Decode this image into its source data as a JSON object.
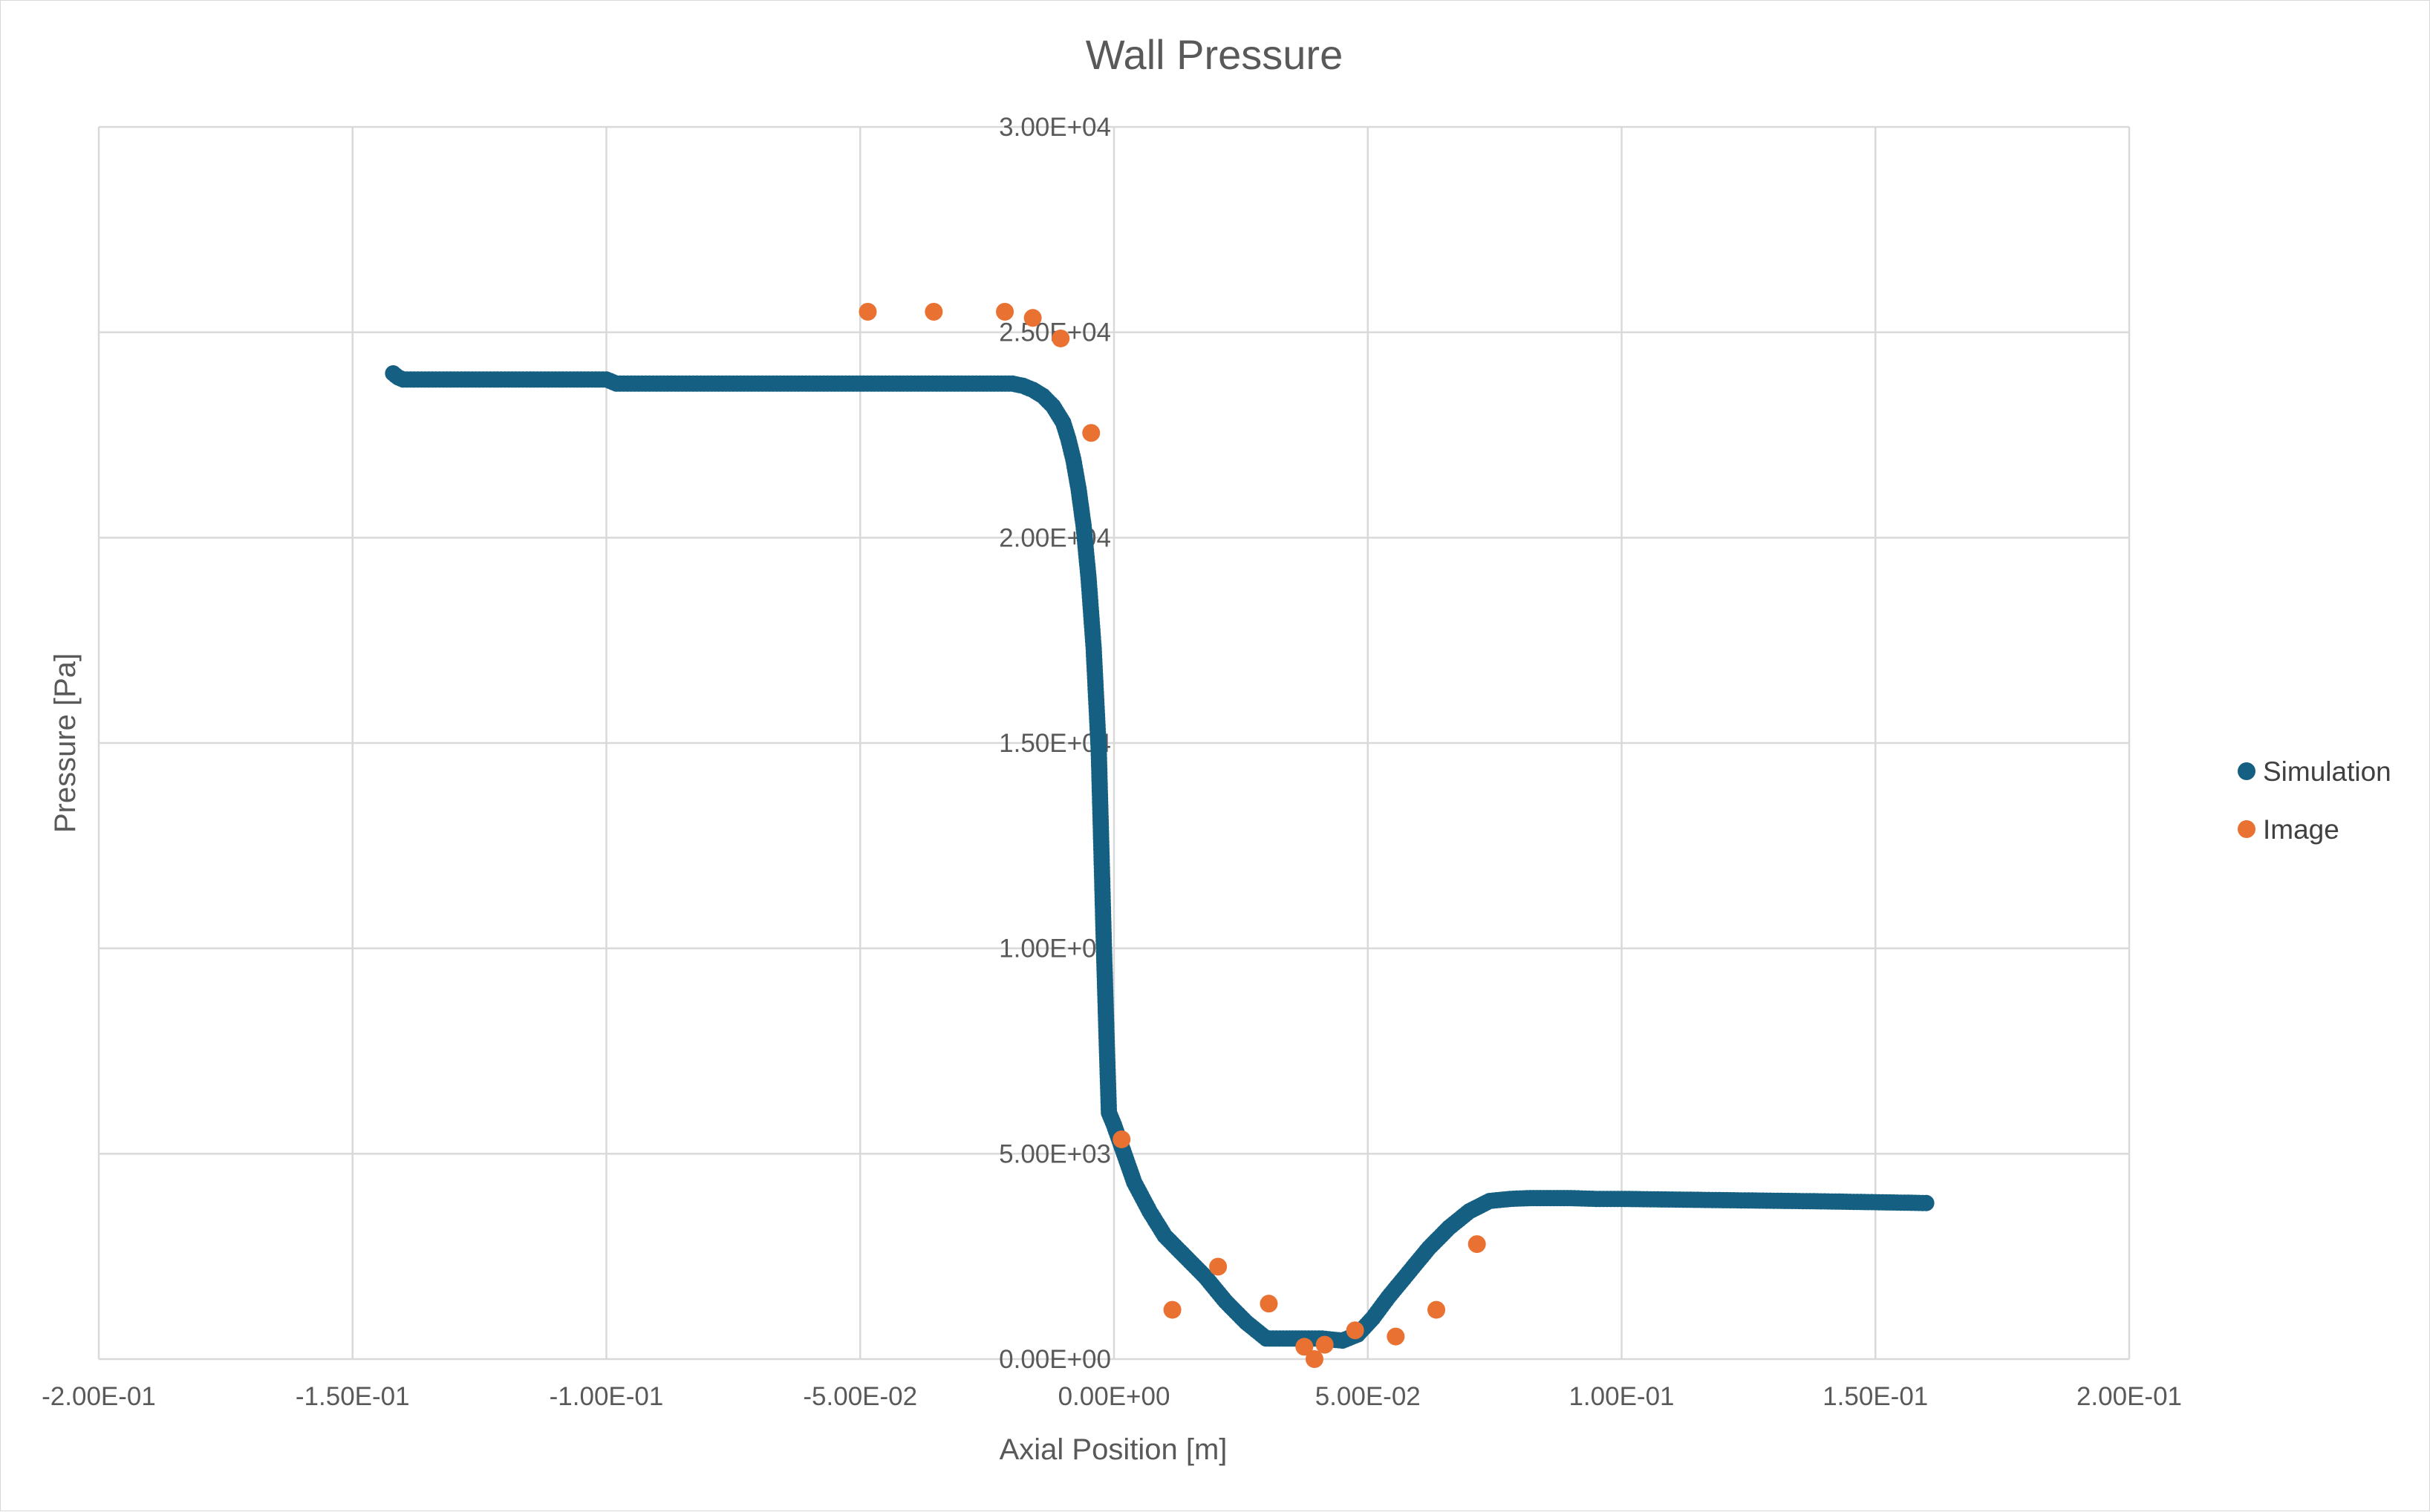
{
  "chart_data": {
    "type": "scatter",
    "title": "Wall Pressure",
    "xlabel": "Axial Position [m]",
    "ylabel": "Pressure [Pa]",
    "xlim": [
      -0.2,
      0.2
    ],
    "ylim": [
      0,
      30000
    ],
    "x_ticks": [
      -0.2,
      -0.15,
      -0.1,
      -0.05,
      0,
      0.05,
      0.1,
      0.15,
      0.2
    ],
    "x_tick_labels": [
      "-2.00E-01",
      "-1.50E-01",
      "-1.00E-01",
      "-5.00E-02",
      "0.00E+00",
      "5.00E-02",
      "1.00E-01",
      "1.50E-01",
      "2.00E-01"
    ],
    "y_ticks": [
      0,
      5000,
      10000,
      15000,
      20000,
      25000,
      30000
    ],
    "y_tick_labels": [
      "0.00E+00",
      "5.00E+03",
      "1.00E+04",
      "1.50E+04",
      "2.00E+04",
      "2.50E+04",
      "3.00E+04"
    ],
    "grid": true,
    "legend_position": "right",
    "colors": {
      "Simulation": "#156082",
      "Image": "#e97132"
    },
    "series": [
      {
        "name": "Simulation",
        "type": "curve-samples",
        "x": [
          -0.142,
          -0.141,
          -0.14,
          -0.13,
          -0.12,
          -0.11,
          -0.1,
          -0.098,
          -0.08,
          -0.06,
          -0.04,
          -0.03,
          -0.02,
          -0.018,
          -0.016,
          -0.014,
          -0.012,
          -0.01,
          -0.009,
          -0.008,
          -0.007,
          -0.006,
          -0.005,
          -0.004,
          -0.003,
          -0.0025,
          -0.002,
          -0.0015,
          -0.001,
          0.0,
          0.002,
          0.004,
          0.007,
          0.01,
          0.014,
          0.018,
          0.022,
          0.026,
          0.03,
          0.034,
          0.037,
          0.039,
          0.041,
          0.045,
          0.048,
          0.051,
          0.054,
          0.058,
          0.062,
          0.066,
          0.07,
          0.074,
          0.078,
          0.082,
          0.086,
          0.09,
          0.095,
          0.1,
          0.12,
          0.14,
          0.16
        ],
        "y": [
          24000,
          23900,
          23850,
          23850,
          23850,
          23850,
          23850,
          23750,
          23750,
          23750,
          23750,
          23750,
          23750,
          23700,
          23600,
          23450,
          23200,
          22800,
          22400,
          21900,
          21200,
          20300,
          19000,
          17300,
          14800,
          12500,
          10100,
          8000,
          6000,
          5700,
          5000,
          4300,
          3600,
          3000,
          2500,
          2000,
          1400,
          900,
          500,
          500,
          500,
          500,
          500,
          450,
          600,
          1000,
          1500,
          2100,
          2700,
          3200,
          3600,
          3850,
          3900,
          3920,
          3920,
          3920,
          3900,
          3900,
          3870,
          3840,
          3800
        ]
      },
      {
        "name": "Image",
        "x": [
          -0.0485,
          -0.0355,
          -0.0215,
          -0.016,
          -0.0105,
          -0.0045,
          0.0015,
          0.0115,
          0.0205,
          0.0305,
          0.0375,
          0.0395,
          0.0415,
          0.0475,
          0.0555,
          0.0635,
          0.0715
        ],
        "y": [
          25500,
          25500,
          25500,
          25350,
          24850,
          22550,
          5350,
          1200,
          2250,
          1350,
          300,
          0,
          350,
          700,
          550,
          1200,
          2800
        ]
      }
    ]
  }
}
